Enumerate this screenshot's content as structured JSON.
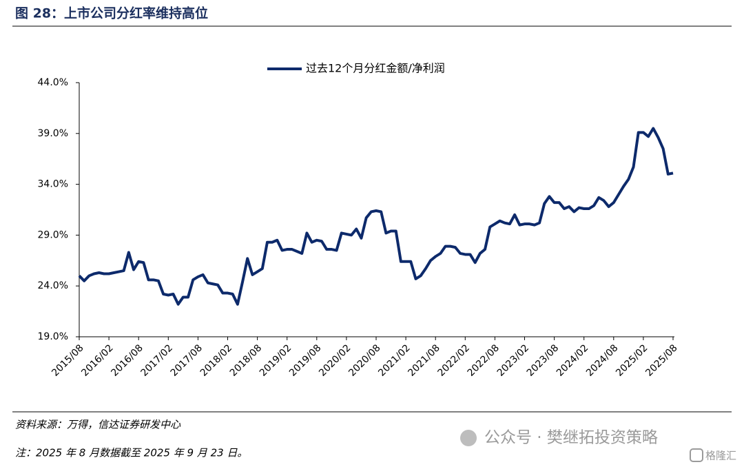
{
  "chart_data": {
    "type": "line",
    "title": "图 28：上市公司分红率维持高位",
    "categories": [
      "2015/08",
      null,
      null,
      null,
      null,
      null,
      "2016/02",
      null,
      null,
      null,
      null,
      null,
      "2016/08",
      null,
      null,
      null,
      null,
      null,
      "2017/02",
      null,
      null,
      null,
      null,
      null,
      "2017/08",
      null,
      null,
      null,
      null,
      null,
      "2018/02",
      null,
      null,
      null,
      null,
      null,
      "2018/08",
      null,
      null,
      null,
      null,
      null,
      "2019/02",
      null,
      null,
      null,
      null,
      null,
      "2019/08",
      null,
      null,
      null,
      null,
      null,
      "2020/02",
      null,
      null,
      null,
      null,
      null,
      "2020/08",
      null,
      null,
      null,
      null,
      null,
      "2021/02",
      null,
      null,
      null,
      null,
      null,
      "2021/08",
      null,
      null,
      null,
      null,
      null,
      "2022/02",
      null,
      null,
      null,
      null,
      null,
      "2022/08",
      null,
      null,
      null,
      null,
      null,
      "2023/02",
      null,
      null,
      null,
      null,
      null,
      "2023/08",
      null,
      null,
      null,
      null,
      null,
      "2024/02",
      null,
      null,
      null,
      null,
      null,
      "2024/08",
      null,
      null,
      null,
      null,
      null,
      "2025/02",
      null,
      null,
      null,
      null,
      null,
      "2025/08"
    ],
    "series": [
      {
        "name": "过去12个月分红金额/净利润",
        "color": "#0d2a6b",
        "values": [
          25.0,
          24.5,
          25.0,
          25.2,
          25.3,
          25.2,
          25.2,
          25.3,
          25.4,
          25.5,
          27.3,
          25.6,
          26.4,
          26.3,
          24.6,
          24.6,
          24.5,
          23.2,
          23.1,
          23.2,
          22.2,
          22.9,
          22.9,
          24.6,
          24.9,
          25.1,
          24.3,
          24.2,
          24.1,
          23.3,
          23.3,
          23.2,
          22.2,
          24.4,
          26.7,
          25.1,
          25.4,
          25.7,
          28.3,
          28.3,
          28.5,
          27.5,
          27.6,
          27.6,
          27.4,
          27.2,
          29.2,
          28.3,
          28.5,
          28.4,
          27.6,
          27.6,
          27.5,
          29.2,
          29.1,
          29.0,
          29.6,
          28.7,
          30.7,
          31.3,
          31.4,
          31.3,
          29.2,
          29.4,
          29.4,
          26.4,
          26.4,
          26.4,
          24.7,
          25.0,
          25.7,
          26.5,
          26.9,
          27.2,
          27.9,
          27.9,
          27.8,
          27.2,
          27.1,
          27.1,
          26.3,
          27.2,
          27.6,
          29.8,
          30.1,
          30.4,
          30.2,
          30.1,
          31.0,
          30.0,
          30.1,
          30.1,
          30.0,
          30.2,
          32.1,
          32.8,
          32.2,
          32.2,
          31.6,
          31.8,
          31.3,
          31.7,
          31.6,
          31.6,
          31.9,
          32.7,
          32.4,
          31.8,
          32.2,
          33.0,
          33.8,
          34.5,
          35.7,
          39.1,
          39.1,
          38.7,
          39.5,
          38.6,
          37.5,
          35.0,
          35.1
        ]
      }
    ],
    "ylim": [
      19,
      44
    ],
    "yticks": [
      {
        "value": 19,
        "label": "19.0%"
      },
      {
        "value": 24,
        "label": "24.0%"
      },
      {
        "value": 29,
        "label": "29.0%"
      },
      {
        "value": 34,
        "label": "34.0%"
      },
      {
        "value": 39,
        "label": "39.0%"
      },
      {
        "value": 44,
        "label": "44.0%"
      }
    ],
    "grid": false,
    "legend": "top"
  },
  "source": "资料来源：万得，信达证券研发中心",
  "note": "注：2025 年 8 月数据截至 2025 年 9 月 23 日。",
  "watermark": "公众号 · 樊继拓投资策略",
  "logo": "格隆汇"
}
